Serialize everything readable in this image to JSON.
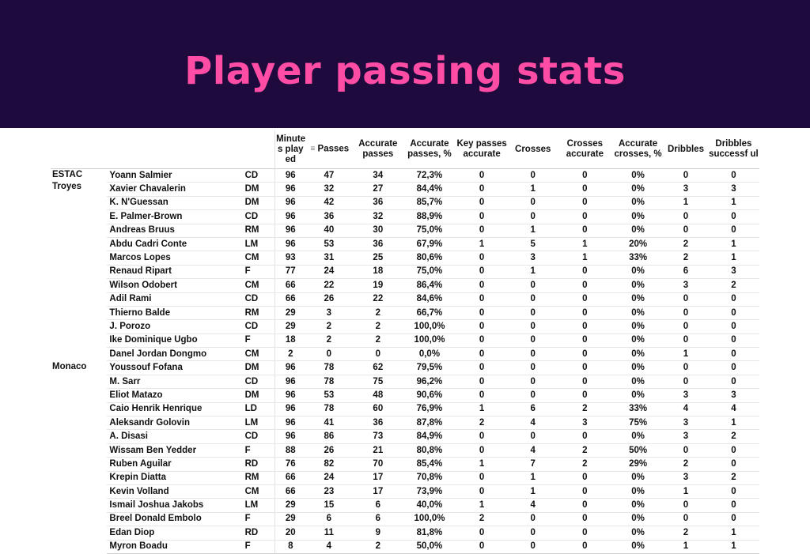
{
  "page": {
    "title": "Player passing stats",
    "colors": {
      "banner_bg": "#1e0a3c",
      "title": "#ff4da6"
    }
  },
  "table": {
    "headers": {
      "minutes": "Minute s play ed",
      "passes": "Passes",
      "accurate_passes": "Accurate passes",
      "accurate_passes_pct": "Accurate passes, %",
      "key_passes_accurate": "Key passes accurate",
      "crosses": "Crosses",
      "crosses_accurate": "Crosses accurate",
      "accurate_crosses_pct": "Accurate crosses, %",
      "dribbles": "Dribbles",
      "dribbles_successful": "Dribbles successf ul"
    },
    "sort_icon": "filter-sort-icon",
    "teams": [
      {
        "name": "ESTAC Troyes",
        "players": [
          [
            "Yoann Salmier",
            "CD",
            "96",
            "47",
            "34",
            "72,3%",
            "0",
            "0",
            "0",
            "0%",
            "0",
            "0"
          ],
          [
            "Xavier Chavalerin",
            "DM",
            "96",
            "32",
            "27",
            "84,4%",
            "0",
            "1",
            "0",
            "0%",
            "3",
            "3"
          ],
          [
            "K. N'Guessan",
            "DM",
            "96",
            "42",
            "36",
            "85,7%",
            "0",
            "0",
            "0",
            "0%",
            "1",
            "1"
          ],
          [
            "E. Palmer-Brown",
            "CD",
            "96",
            "36",
            "32",
            "88,9%",
            "0",
            "0",
            "0",
            "0%",
            "0",
            "0"
          ],
          [
            "Andreas Bruus",
            "RM",
            "96",
            "40",
            "30",
            "75,0%",
            "0",
            "1",
            "0",
            "0%",
            "0",
            "0"
          ],
          [
            "Abdu Cadri Conte",
            "LM",
            "96",
            "53",
            "36",
            "67,9%",
            "1",
            "5",
            "1",
            "20%",
            "2",
            "1"
          ],
          [
            "Marcos Lopes",
            "CM",
            "93",
            "31",
            "25",
            "80,6%",
            "0",
            "3",
            "1",
            "33%",
            "2",
            "1"
          ],
          [
            "Renaud Ripart",
            "F",
            "77",
            "24",
            "18",
            "75,0%",
            "0",
            "1",
            "0",
            "0%",
            "6",
            "3"
          ],
          [
            "Wilson Odobert",
            "CM",
            "66",
            "22",
            "19",
            "86,4%",
            "0",
            "0",
            "0",
            "0%",
            "3",
            "2"
          ],
          [
            "Adil Rami",
            "CD",
            "66",
            "26",
            "22",
            "84,6%",
            "0",
            "0",
            "0",
            "0%",
            "0",
            "0"
          ],
          [
            "Thierno Balde",
            "RM",
            "29",
            "3",
            "2",
            "66,7%",
            "0",
            "0",
            "0",
            "0%",
            "0",
            "0"
          ],
          [
            "J. Porozo",
            "CD",
            "29",
            "2",
            "2",
            "100,0%",
            "0",
            "0",
            "0",
            "0%",
            "0",
            "0"
          ],
          [
            "Ike Dominique Ugbo",
            "F",
            "18",
            "2",
            "2",
            "100,0%",
            "0",
            "0",
            "0",
            "0%",
            "0",
            "0"
          ],
          [
            "Danel Jordan Dongmo",
            "CM",
            "2",
            "0",
            "0",
            "0,0%",
            "0",
            "0",
            "0",
            "0%",
            "1",
            "0"
          ]
        ]
      },
      {
        "name": "Monaco",
        "players": [
          [
            "Youssouf Fofana",
            "DM",
            "96",
            "78",
            "62",
            "79,5%",
            "0",
            "0",
            "0",
            "0%",
            "0",
            "0"
          ],
          [
            "M. Sarr",
            "CD",
            "96",
            "78",
            "75",
            "96,2%",
            "0",
            "0",
            "0",
            "0%",
            "0",
            "0"
          ],
          [
            "Eliot Matazo",
            "DM",
            "96",
            "53",
            "48",
            "90,6%",
            "0",
            "0",
            "0",
            "0%",
            "3",
            "3"
          ],
          [
            "Caio Henrik Henrique",
            "LD",
            "96",
            "78",
            "60",
            "76,9%",
            "1",
            "6",
            "2",
            "33%",
            "4",
            "4"
          ],
          [
            "Aleksandr Golovin",
            "LM",
            "96",
            "41",
            "36",
            "87,8%",
            "2",
            "4",
            "3",
            "75%",
            "3",
            "1"
          ],
          [
            "A. Disasi",
            "CD",
            "96",
            "86",
            "73",
            "84,9%",
            "0",
            "0",
            "0",
            "0%",
            "3",
            "2"
          ],
          [
            "Wissam Ben Yedder",
            "F",
            "88",
            "26",
            "21",
            "80,8%",
            "0",
            "4",
            "2",
            "50%",
            "0",
            "0"
          ],
          [
            "Ruben Aguilar",
            "RD",
            "76",
            "82",
            "70",
            "85,4%",
            "1",
            "7",
            "2",
            "29%",
            "2",
            "0"
          ],
          [
            "Krepin Diatta",
            "RM",
            "66",
            "24",
            "17",
            "70,8%",
            "0",
            "1",
            "0",
            "0%",
            "3",
            "2"
          ],
          [
            "Kevin Volland",
            "CM",
            "66",
            "23",
            "17",
            "73,9%",
            "0",
            "1",
            "0",
            "0%",
            "1",
            "0"
          ],
          [
            "Ismail Joshua Jakobs",
            "LM",
            "29",
            "15",
            "6",
            "40,0%",
            "1",
            "4",
            "0",
            "0%",
            "0",
            "0"
          ],
          [
            "Breel Donald Embolo",
            "F",
            "29",
            "6",
            "6",
            "100,0%",
            "2",
            "0",
            "0",
            "0%",
            "0",
            "0"
          ],
          [
            "Edan Diop",
            "RD",
            "20",
            "11",
            "9",
            "81,8%",
            "0",
            "0",
            "0",
            "0%",
            "2",
            "1"
          ],
          [
            "Myron Boadu",
            "F",
            "8",
            "4",
            "2",
            "50,0%",
            "0",
            "0",
            "0",
            "0%",
            "1",
            "1"
          ]
        ]
      }
    ]
  }
}
